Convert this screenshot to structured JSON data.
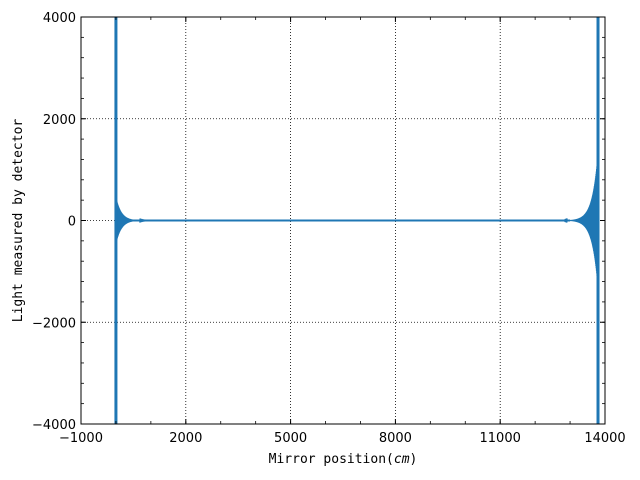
{
  "chart_data": {
    "type": "line",
    "title": "",
    "xlabel_prefix": "Mirror position(",
    "xlabel_unit": "cm",
    "xlabel_suffix": ")",
    "ylabel": "Light measured by detector",
    "xlim": [
      -1000,
      14000
    ],
    "ylim": [
      -4000,
      4000
    ],
    "xticks": [
      -1000,
      2000,
      5000,
      8000,
      11000,
      14000
    ],
    "xtick_labels": [
      "−1000",
      "2000",
      "5000",
      "8000",
      "11000",
      "14000"
    ],
    "yticks": [
      -4000,
      -2000,
      0,
      2000,
      4000
    ],
    "ytick_labels": [
      "−4000",
      "−2000",
      "0",
      "2000",
      "4000"
    ],
    "grid": true,
    "grid_style": "dotted",
    "series": [
      {
        "color": "#1f77b4",
        "description_points": [
          {
            "x": 0,
            "y": 0
          },
          {
            "x": 5000,
            "y": 0
          },
          {
            "x": 8000,
            "y": 0
          },
          {
            "x": 13000,
            "y": 0
          }
        ],
        "spikes": [
          {
            "x": 0,
            "ymin": -4000,
            "ymax": 4000
          },
          {
            "x": 13800,
            "ymin": -4000,
            "ymax": 4000
          }
        ],
        "ringing": [
          {
            "center": 0,
            "direction": 1,
            "amplitude": 450,
            "decay": 150
          },
          {
            "center": 13800,
            "direction": -1,
            "amplitude": 1300,
            "decay": 160
          }
        ]
      }
    ]
  }
}
